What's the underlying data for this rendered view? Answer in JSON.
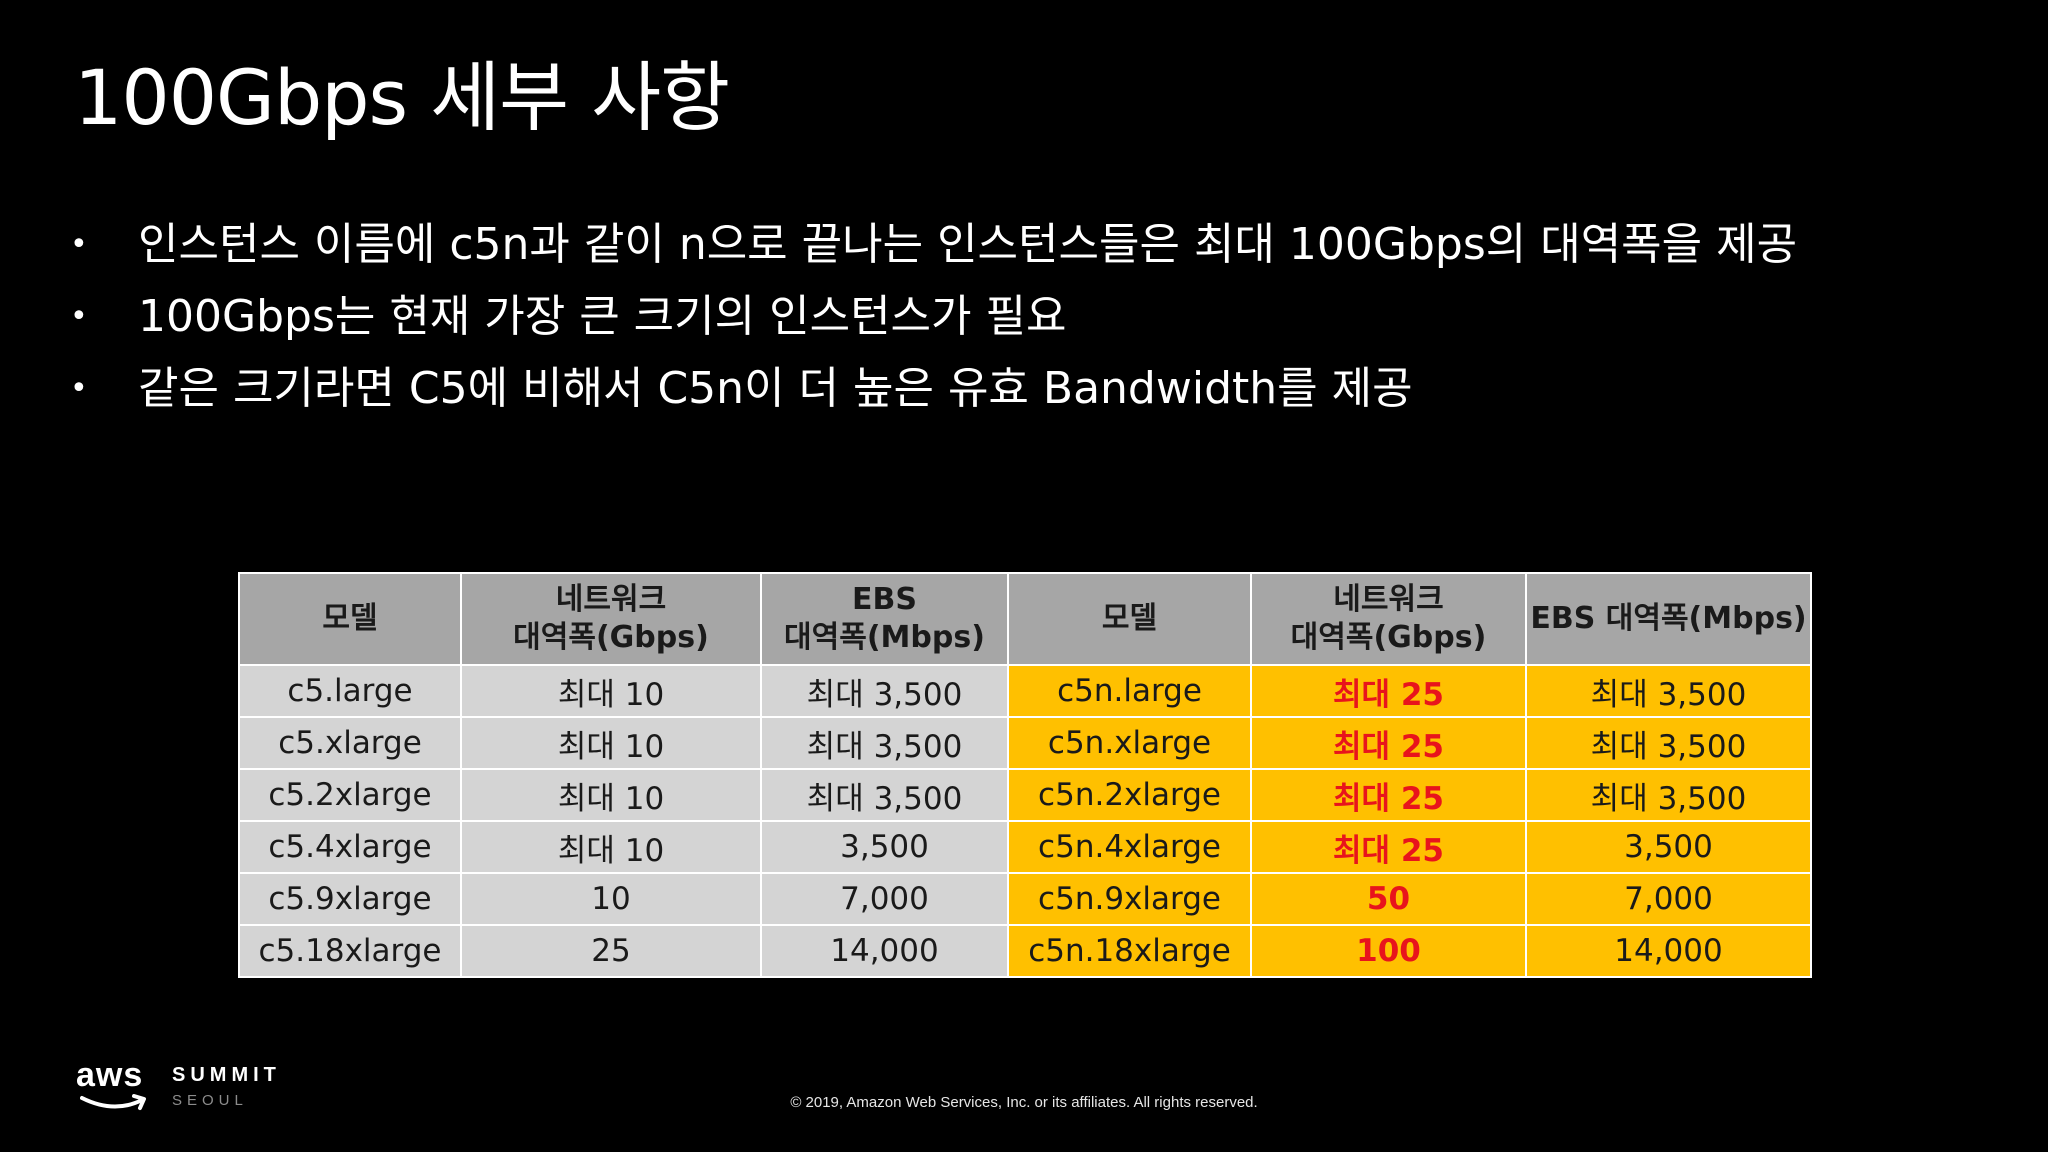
{
  "slide": {
    "title": "100Gbps 세부 사항",
    "bullets": [
      {
        "marker": "•",
        "text": "인스턴스 이름에 c5n과 같이 n으로 끝나는 인스턴스들은 최대 100Gbps의 대역폭을 제공"
      },
      {
        "marker": "•",
        "text": "100Gbps는 현재 가장 큰 크기의 인스턴스가 필요"
      },
      {
        "marker": "•",
        "text": "같은 크기라면 C5에 비해서 C5n이 더 높은 유효 Bandwidth를 제공"
      }
    ]
  },
  "table": {
    "headers": [
      {
        "lines": [
          "모델"
        ]
      },
      {
        "lines": [
          "네트워크",
          "대역폭(Gbps)"
        ]
      },
      {
        "lines": [
          "EBS",
          "대역폭(Mbps)"
        ]
      },
      {
        "lines": [
          "모델"
        ]
      },
      {
        "lines": [
          "네트워크",
          "대역폭(Gbps)"
        ]
      },
      {
        "lines": [
          "EBS 대역폭(Mbps)"
        ]
      }
    ],
    "rows": [
      [
        "c5.large",
        "최대 10",
        "최대 3,500",
        "c5n.large",
        "최대 25",
        "최대 3,500"
      ],
      [
        "c5.xlarge",
        "최대 10",
        "최대 3,500",
        "c5n.xlarge",
        "최대 25",
        "최대 3,500"
      ],
      [
        "c5.2xlarge",
        "최대 10",
        "최대 3,500",
        "c5n.2xlarge",
        "최대 25",
        "최대 3,500"
      ],
      [
        "c5.4xlarge",
        "최대 10",
        "3,500",
        "c5n.4xlarge",
        "최대 25",
        "3,500"
      ],
      [
        "c5.9xlarge",
        "10",
        "7,000",
        "c5n.9xlarge",
        "50",
        "7,000"
      ],
      [
        "c5.18xlarge",
        "25",
        "14,000",
        "c5n.18xlarge",
        "100",
        "14,000"
      ]
    ],
    "colors": {
      "header_bg": "#a6a6a6",
      "c5_bg": "#d4d4d4",
      "c5n_bg": "#ffc000",
      "c5n_network_text": "#e8141c"
    }
  },
  "footer": {
    "logo_aws": "aws",
    "logo_summit": "SUMMIT",
    "logo_seoul": "SEOUL",
    "copyright": "© 2019, Amazon Web Services, Inc. or its affiliates. All rights reserved."
  }
}
